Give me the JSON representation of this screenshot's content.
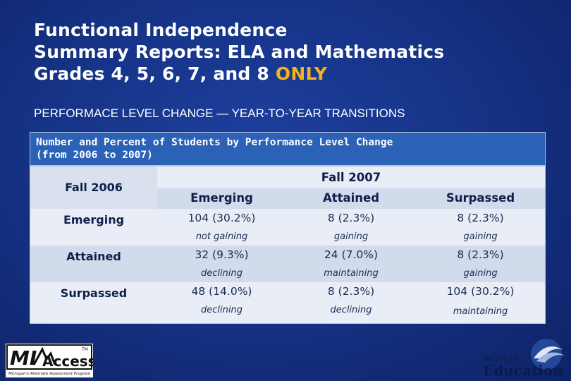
{
  "title": {
    "line1": "Functional Independence",
    "line2": "Summary Reports: ELA and Mathematics",
    "line3_prefix": "Grades 4, 5, 6, 7, and 8 ",
    "line3_accent": "ONLY"
  },
  "subtitle": "PERFORMACE LEVEL CHANGE — YEAR-TO-YEAR TRANSITIONS",
  "table": {
    "caption_line1": "Number and Percent of Students by Performance Level Change",
    "caption_line2": "(from 2006 to 2007)",
    "row_header_title": "Fall 2006",
    "col_group_title": "Fall 2007",
    "columns": [
      "Emerging",
      "Attained",
      "Surpassed"
    ],
    "rows": [
      {
        "label": "Emerging",
        "values": [
          "104 (30.2%)",
          "8 (2.3%)",
          "8 (2.3%)"
        ],
        "notes": [
          "not gaining",
          "gaining",
          "gaining"
        ]
      },
      {
        "label": "Attained",
        "values": [
          "32 (9.3%)",
          "24 (7.0%)",
          "8 (2.3%)"
        ],
        "notes": [
          "declining",
          "maintaining",
          "gaining"
        ]
      },
      {
        "label": "Surpassed",
        "values": [
          "48 (14.0%)",
          "8 (2.3%)",
          "104 (30.2%)"
        ],
        "notes": [
          "declining",
          "declining",
          "maintaining"
        ]
      }
    ]
  },
  "logos": {
    "left_text": "MI Access",
    "left_tagline": "Michigan's Alternate Assessment Program",
    "left_tm": "TM",
    "right_state": "MICHIGAN",
    "right_dept": "Education"
  },
  "colors": {
    "background": "#163488",
    "caption_bg": "#2b62b8",
    "accent": "#f3b21a",
    "cell_light": "#e9eef6",
    "cell_mid": "#d2dbeb"
  }
}
